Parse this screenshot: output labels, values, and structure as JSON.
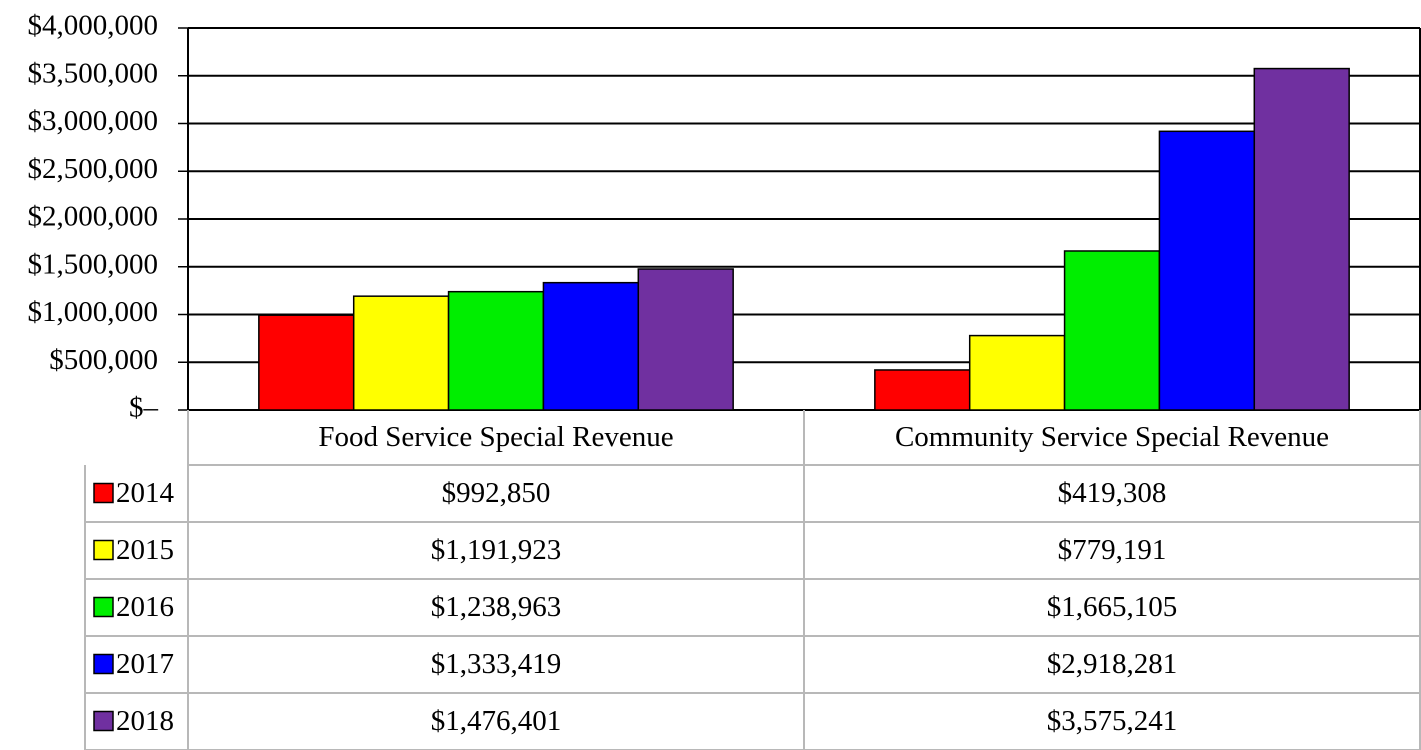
{
  "chart_data": {
    "type": "bar",
    "categories": [
      "Food Service Special Revenue",
      "Community Service Special Revenue"
    ],
    "series": [
      {
        "name": "2014",
        "color": "#ff0000",
        "values": [
          992850,
          419308
        ],
        "value_labels": [
          "$992,850",
          "$419,308"
        ]
      },
      {
        "name": "2015",
        "color": "#ffff00",
        "values": [
          1191923,
          779191
        ],
        "value_labels": [
          "$1,191,923",
          "$779,191"
        ]
      },
      {
        "name": "2016",
        "color": "#00ee00",
        "values": [
          1238963,
          1665105
        ],
        "value_labels": [
          "$1,238,963",
          "$1,665,105"
        ]
      },
      {
        "name": "2017",
        "color": "#0000ff",
        "values": [
          1333419,
          2918281
        ],
        "value_labels": [
          "$1,333,419",
          "$2,918,281"
        ]
      },
      {
        "name": "2018",
        "color": "#7030a0",
        "values": [
          1476401,
          3575241
        ],
        "value_labels": [
          "$1,476,401",
          "$3,575,241"
        ]
      }
    ],
    "ylim": [
      0,
      4000000
    ],
    "yticks": [
      {
        "value": 0,
        "label": "$–"
      },
      {
        "value": 500000,
        "label": "$500,000"
      },
      {
        "value": 1000000,
        "label": "$1,000,000"
      },
      {
        "value": 1500000,
        "label": "$1,500,000"
      },
      {
        "value": 2000000,
        "label": "$2,000,000"
      },
      {
        "value": 2500000,
        "label": "$2,500,000"
      },
      {
        "value": 3000000,
        "label": "$3,000,000"
      },
      {
        "value": 3500000,
        "label": "$3,500,000"
      },
      {
        "value": 4000000,
        "label": "$4,000,000"
      }
    ],
    "grid": true
  }
}
